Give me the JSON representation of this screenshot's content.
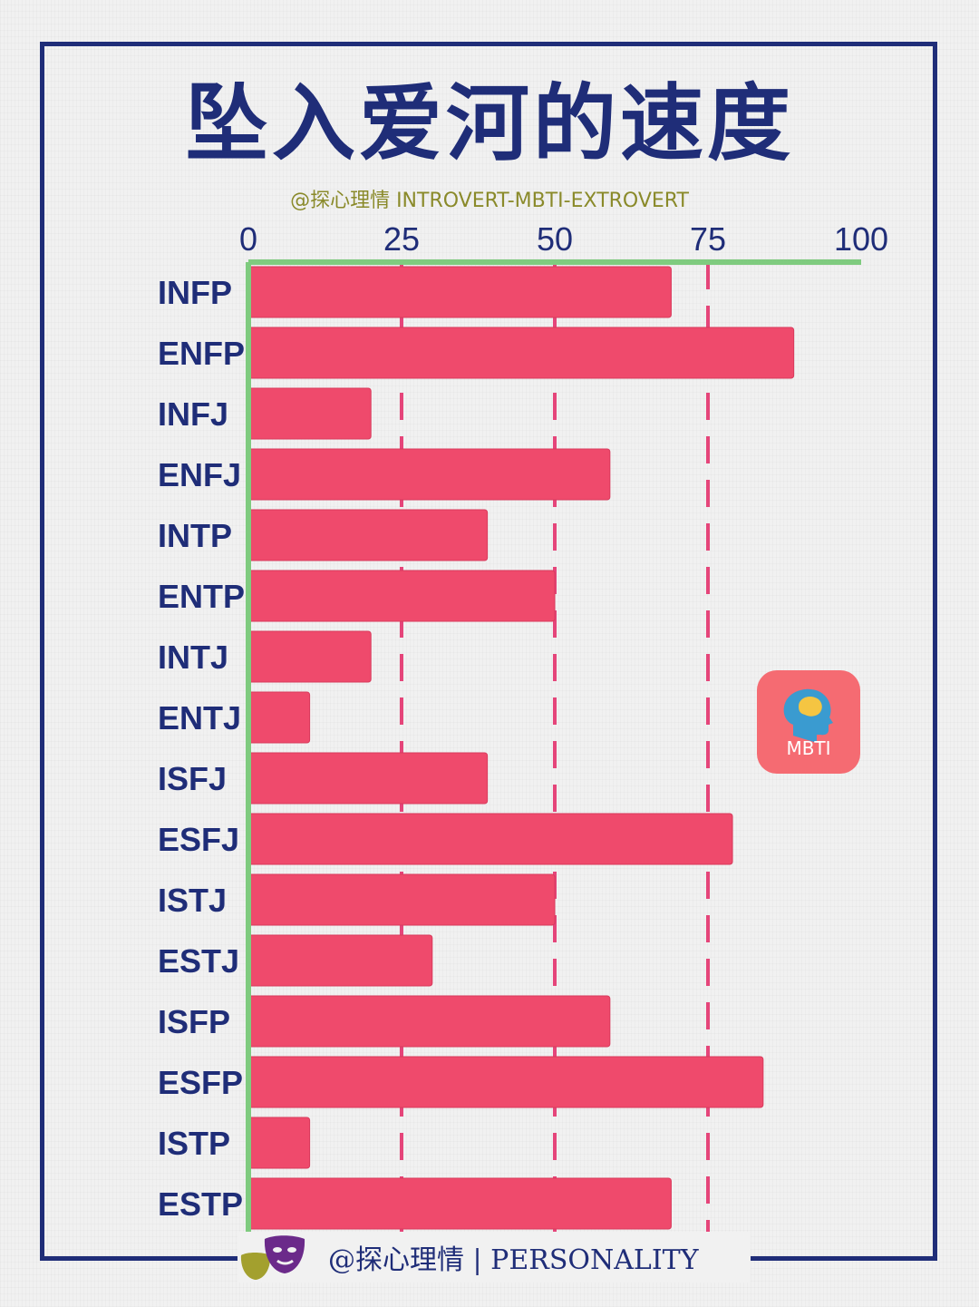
{
  "title": "坠入爱河的速度",
  "subtitle": "@探心理情 INTROVERT-MBTI-EXTROVERT",
  "footer": {
    "text": "@探心理情 | PERSONALITY"
  },
  "badge": {
    "label": "MBTI"
  },
  "colors": {
    "bar": "#ef4a6c",
    "axis": "#7fcb7f",
    "grid": "#e5457a",
    "frame": "#1f2d78",
    "label": "#1f2d78"
  },
  "chart_data": {
    "type": "bar",
    "orientation": "horizontal",
    "categories": [
      "INFP",
      "ENFP",
      "INFJ",
      "ENFJ",
      "INTP",
      "ENTP",
      "INTJ",
      "ENTJ",
      "ISFJ",
      "ESFJ",
      "ISTJ",
      "ESTJ",
      "ISFP",
      "ESFP",
      "ISTP",
      "ESTP"
    ],
    "values": [
      69,
      89,
      20,
      59,
      39,
      50,
      20,
      10,
      39,
      79,
      50,
      30,
      59,
      84,
      10,
      69
    ],
    "xlim": [
      0,
      100
    ],
    "xticks": [
      "0",
      "25",
      "50",
      "75",
      "100"
    ],
    "grid": "dashed vertical lines at 25, 50, 75",
    "axis_position": "top"
  }
}
